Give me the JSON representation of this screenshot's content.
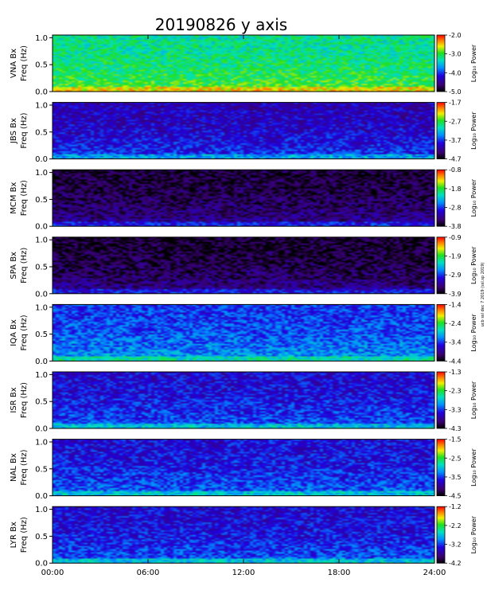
{
  "chart_data": {
    "type": "heatmap",
    "title": "20190826 y axis",
    "xlabel": "",
    "x_range": [
      0,
      24
    ],
    "x_ticks": [
      "00:00",
      "06:00",
      "12:00",
      "18:00",
      "24:00"
    ],
    "y_range": [
      0,
      1.05
    ],
    "y_ticks": [
      "0.0",
      "0.5",
      "1.0"
    ],
    "colorbar_label": "Log₁₀ Power",
    "side_note": "ucb ssl dec 7 2019 (ssl.sp 2019)",
    "panels": [
      {
        "ylabel": "VNA Bx",
        "yunit": "Freq (Hz)",
        "cbar_min": -5.0,
        "cbar_ticks": [
          "-2.0",
          "-3.0",
          "-4.0",
          "-5.0"
        ],
        "cbar_values": [
          -2.0,
          -3.0,
          -4.0,
          -5.0
        ],
        "cbar_max": -2.0,
        "level": 0.58
      },
      {
        "ylabel": "JBS Bx",
        "yunit": "Freq (Hz)",
        "cbar_min": -4.7,
        "cbar_ticks": [
          "-1.7",
          "-2.7",
          "-3.7",
          "-4.7"
        ],
        "cbar_values": [
          -1.7,
          -2.7,
          -3.7,
          -4.7
        ],
        "cbar_max": -1.7,
        "level": 0.22
      },
      {
        "ylabel": "MCM Bx",
        "yunit": "Freq (Hz)",
        "cbar_min": -3.8,
        "cbar_ticks": [
          "-0.8",
          "-1.8",
          "-2.8",
          "-3.8"
        ],
        "cbar_values": [
          -0.8,
          -1.8,
          -2.8,
          -3.8
        ],
        "cbar_max": -0.8,
        "level": 0.06
      },
      {
        "ylabel": "SPA Bx",
        "yunit": "Freq (Hz)",
        "cbar_min": -3.9,
        "cbar_ticks": [
          "-0.9",
          "-1.9",
          "-2.9",
          "-3.9"
        ],
        "cbar_values": [
          -0.9,
          -1.9,
          -2.9,
          -3.9
        ],
        "cbar_max": -0.9,
        "level": 0.05
      },
      {
        "ylabel": "IQA Bx",
        "yunit": "Freq (Hz)",
        "cbar_min": -4.4,
        "cbar_ticks": [
          "-1.4",
          "-2.4",
          "-3.4",
          "-4.4"
        ],
        "cbar_values": [
          -1.4,
          -2.4,
          -3.4,
          -4.4
        ],
        "cbar_max": -1.4,
        "level": 0.33
      },
      {
        "ylabel": "ISR Bx",
        "yunit": "Freq (Hz)",
        "cbar_min": -4.3,
        "cbar_ticks": [
          "-1.3",
          "-2.3",
          "-3.3",
          "-4.3"
        ],
        "cbar_values": [
          -1.3,
          -2.3,
          -3.3,
          -4.3
        ],
        "cbar_max": -1.3,
        "level": 0.26
      },
      {
        "ylabel": "NAL Bx",
        "yunit": "Freq (Hz)",
        "cbar_min": -4.5,
        "cbar_ticks": [
          "-1.5",
          "-2.5",
          "-3.5",
          "-4.5"
        ],
        "cbar_values": [
          -1.5,
          -2.5,
          -3.5,
          -4.5
        ],
        "cbar_max": -1.5,
        "level": 0.27
      },
      {
        "ylabel": "LYR Bx",
        "yunit": "Freq (Hz)",
        "cbar_min": -4.2,
        "cbar_ticks": [
          "-1.2",
          "-2.2",
          "-3.2",
          "-4.2"
        ],
        "cbar_values": [
          -1.2,
          -2.2,
          -3.2,
          -4.2
        ],
        "cbar_max": -1.2,
        "level": 0.26
      }
    ]
  }
}
